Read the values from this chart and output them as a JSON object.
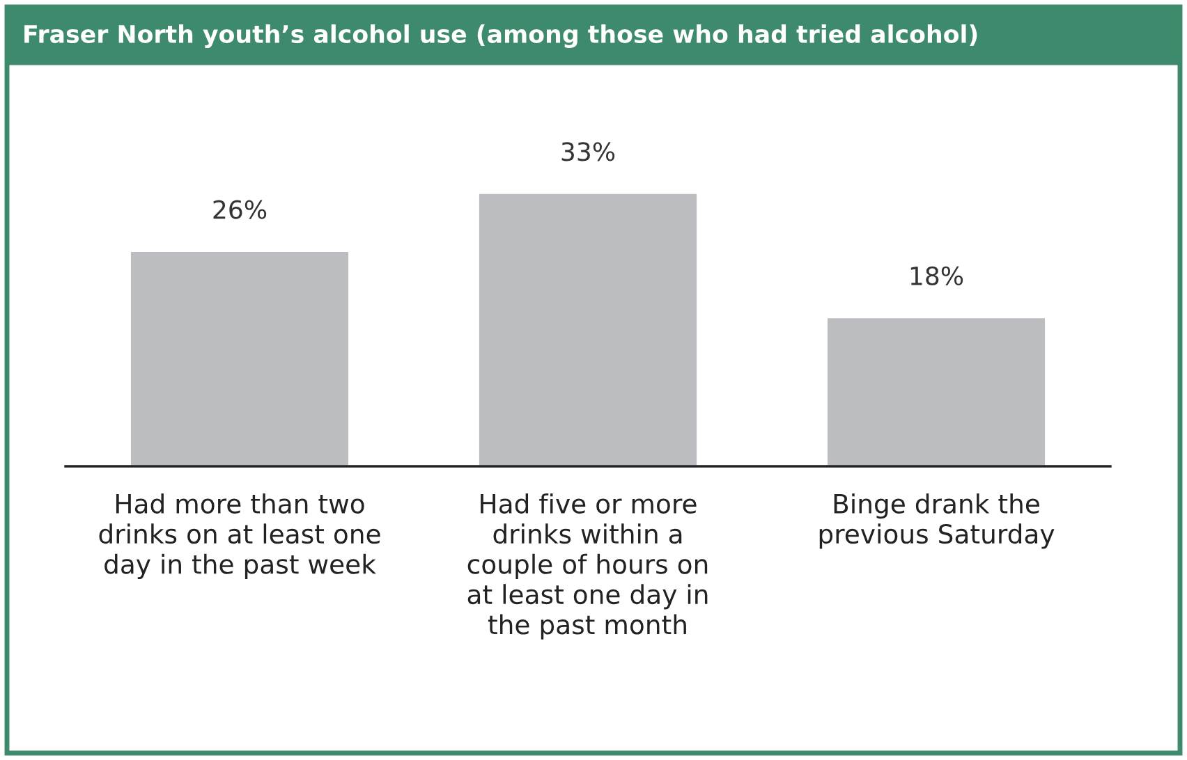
{
  "chart_data": {
    "type": "bar",
    "title": "Fraser North youth’s alcohol use (among those who had tried alcohol)",
    "categories": [
      "Had more than two\ndrinks on at least one\nday in the past week",
      "Had five or more\ndrinks within a\ncouple of hours on\nat least one day in\nthe past month",
      "Binge drank the\nprevious Saturday"
    ],
    "values": [
      26,
      33,
      18
    ],
    "value_labels": [
      "26%",
      "33%",
      "18%"
    ],
    "color": "#bcbdc0"
  }
}
